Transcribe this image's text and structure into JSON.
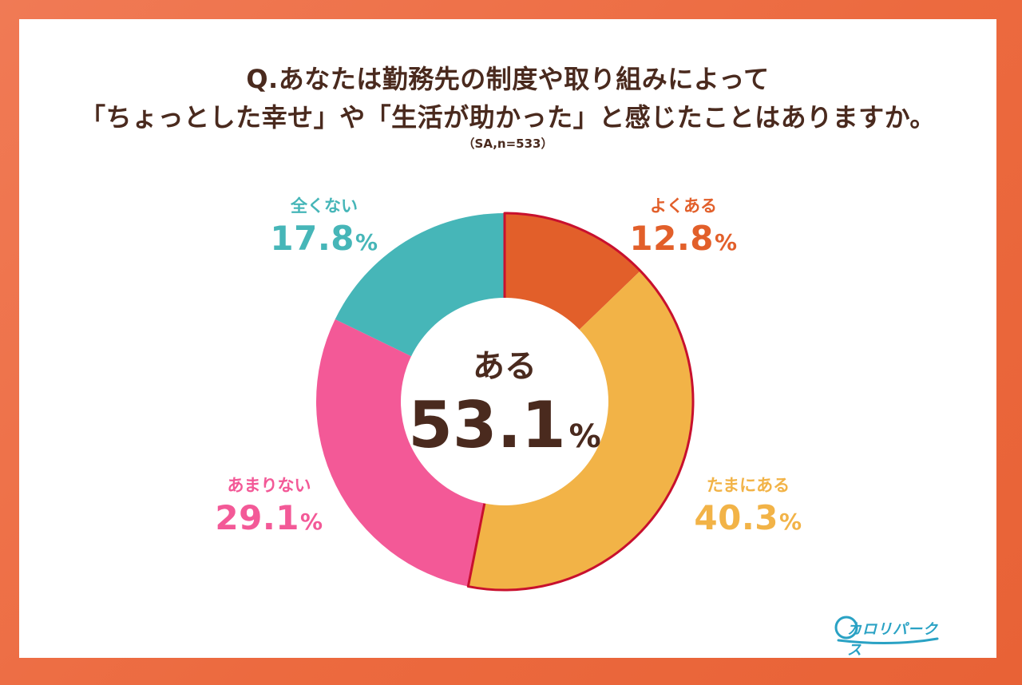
{
  "question": {
    "line1": "Q.あなたは勤務先の制度や取り組みによって",
    "line2": "「ちょっとした幸せ」や「生活が助かった」と感じたことはありますか。",
    "sample": "（SA,n=533）"
  },
  "center": {
    "label": "ある",
    "value": "53.1",
    "unit": "%"
  },
  "brand": {
    "logo_text": "カロリパークス"
  },
  "colors": {
    "often": "#e25f2a",
    "sometimes": "#f2b347",
    "rarely": "#f35997",
    "never": "#46b6b8",
    "highlight": "#c8102e",
    "text": "#4a2a1e"
  },
  "chart_data": {
    "type": "pie",
    "donut": true,
    "title": "Q.あなたは勤務先の制度や取り組みによって「ちょっとした幸せ」や「生活が助かった」と感じたことはありますか。",
    "subtitle": "（SA,n=533）",
    "unit": "%",
    "categories": [
      "よくある",
      "たまにある",
      "あまりない",
      "全くない"
    ],
    "values": [
      12.8,
      40.3,
      29.1,
      17.8
    ],
    "value_labels": [
      "12.8",
      "40.3",
      "29.1",
      "17.8"
    ],
    "colors": [
      "#e25f2a",
      "#f2b347",
      "#f35997",
      "#46b6b8"
    ],
    "highlighted_group": [
      "よくある",
      "たまにある"
    ],
    "center_label": "ある",
    "center_value": 53.1
  }
}
